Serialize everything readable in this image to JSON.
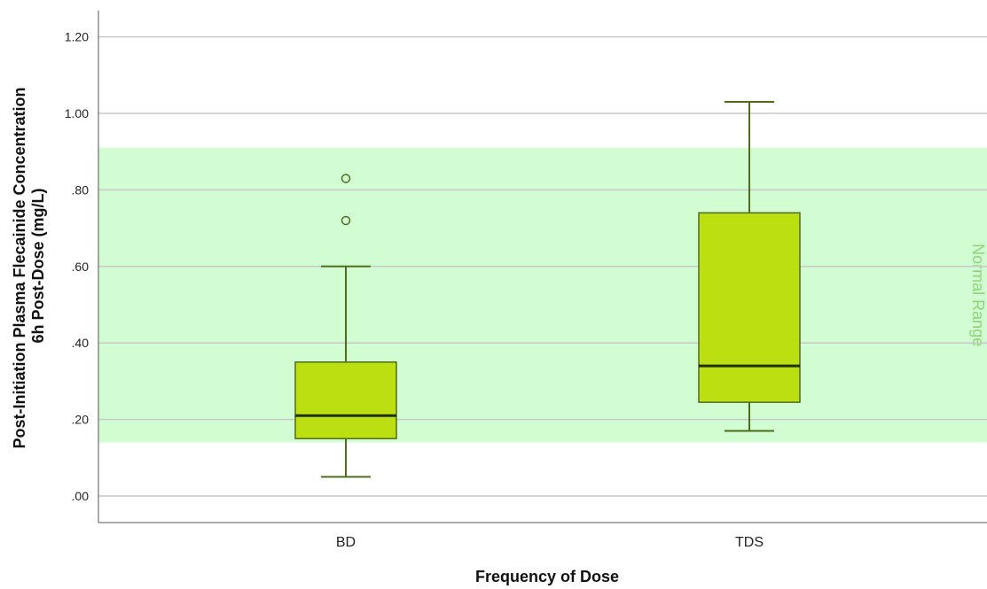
{
  "chart_data": {
    "type": "boxplot",
    "xlabel": "Frequency of Dose",
    "ylabel": [
      "Post-Initiation Plasma Flecainide Concentration",
      "6h Post-Dose (mg/L)"
    ],
    "ylim": [
      -0.07,
      1.27
    ],
    "yticks": [
      0.0,
      0.2,
      0.4,
      0.6,
      0.8,
      1.0,
      1.2
    ],
    "ytick_labels": [
      ".00",
      ".20",
      ".40",
      ".60",
      ".80",
      "1.00",
      "1.20"
    ],
    "grid": "horizontal",
    "categories": [
      "BD",
      "TDS"
    ],
    "boxes": [
      {
        "category": "BD",
        "min": 0.05,
        "q1": 0.15,
        "median": 0.21,
        "q3": 0.35,
        "max": 0.6,
        "outliers": [
          0.72,
          0.83
        ]
      },
      {
        "category": "TDS",
        "min": 0.17,
        "q1": 0.245,
        "median": 0.34,
        "q3": 0.74,
        "max": 1.03,
        "outliers": []
      }
    ],
    "reference_band": {
      "label": "Normal Range",
      "low": 0.14,
      "high": 0.91
    },
    "colors": {
      "box_fill": "#bcdf12",
      "box_stroke": "#4f6b1e",
      "band_fill": "#d2fdd2",
      "band_text": "#8fd27a",
      "grid": "#c8c8c8"
    }
  }
}
